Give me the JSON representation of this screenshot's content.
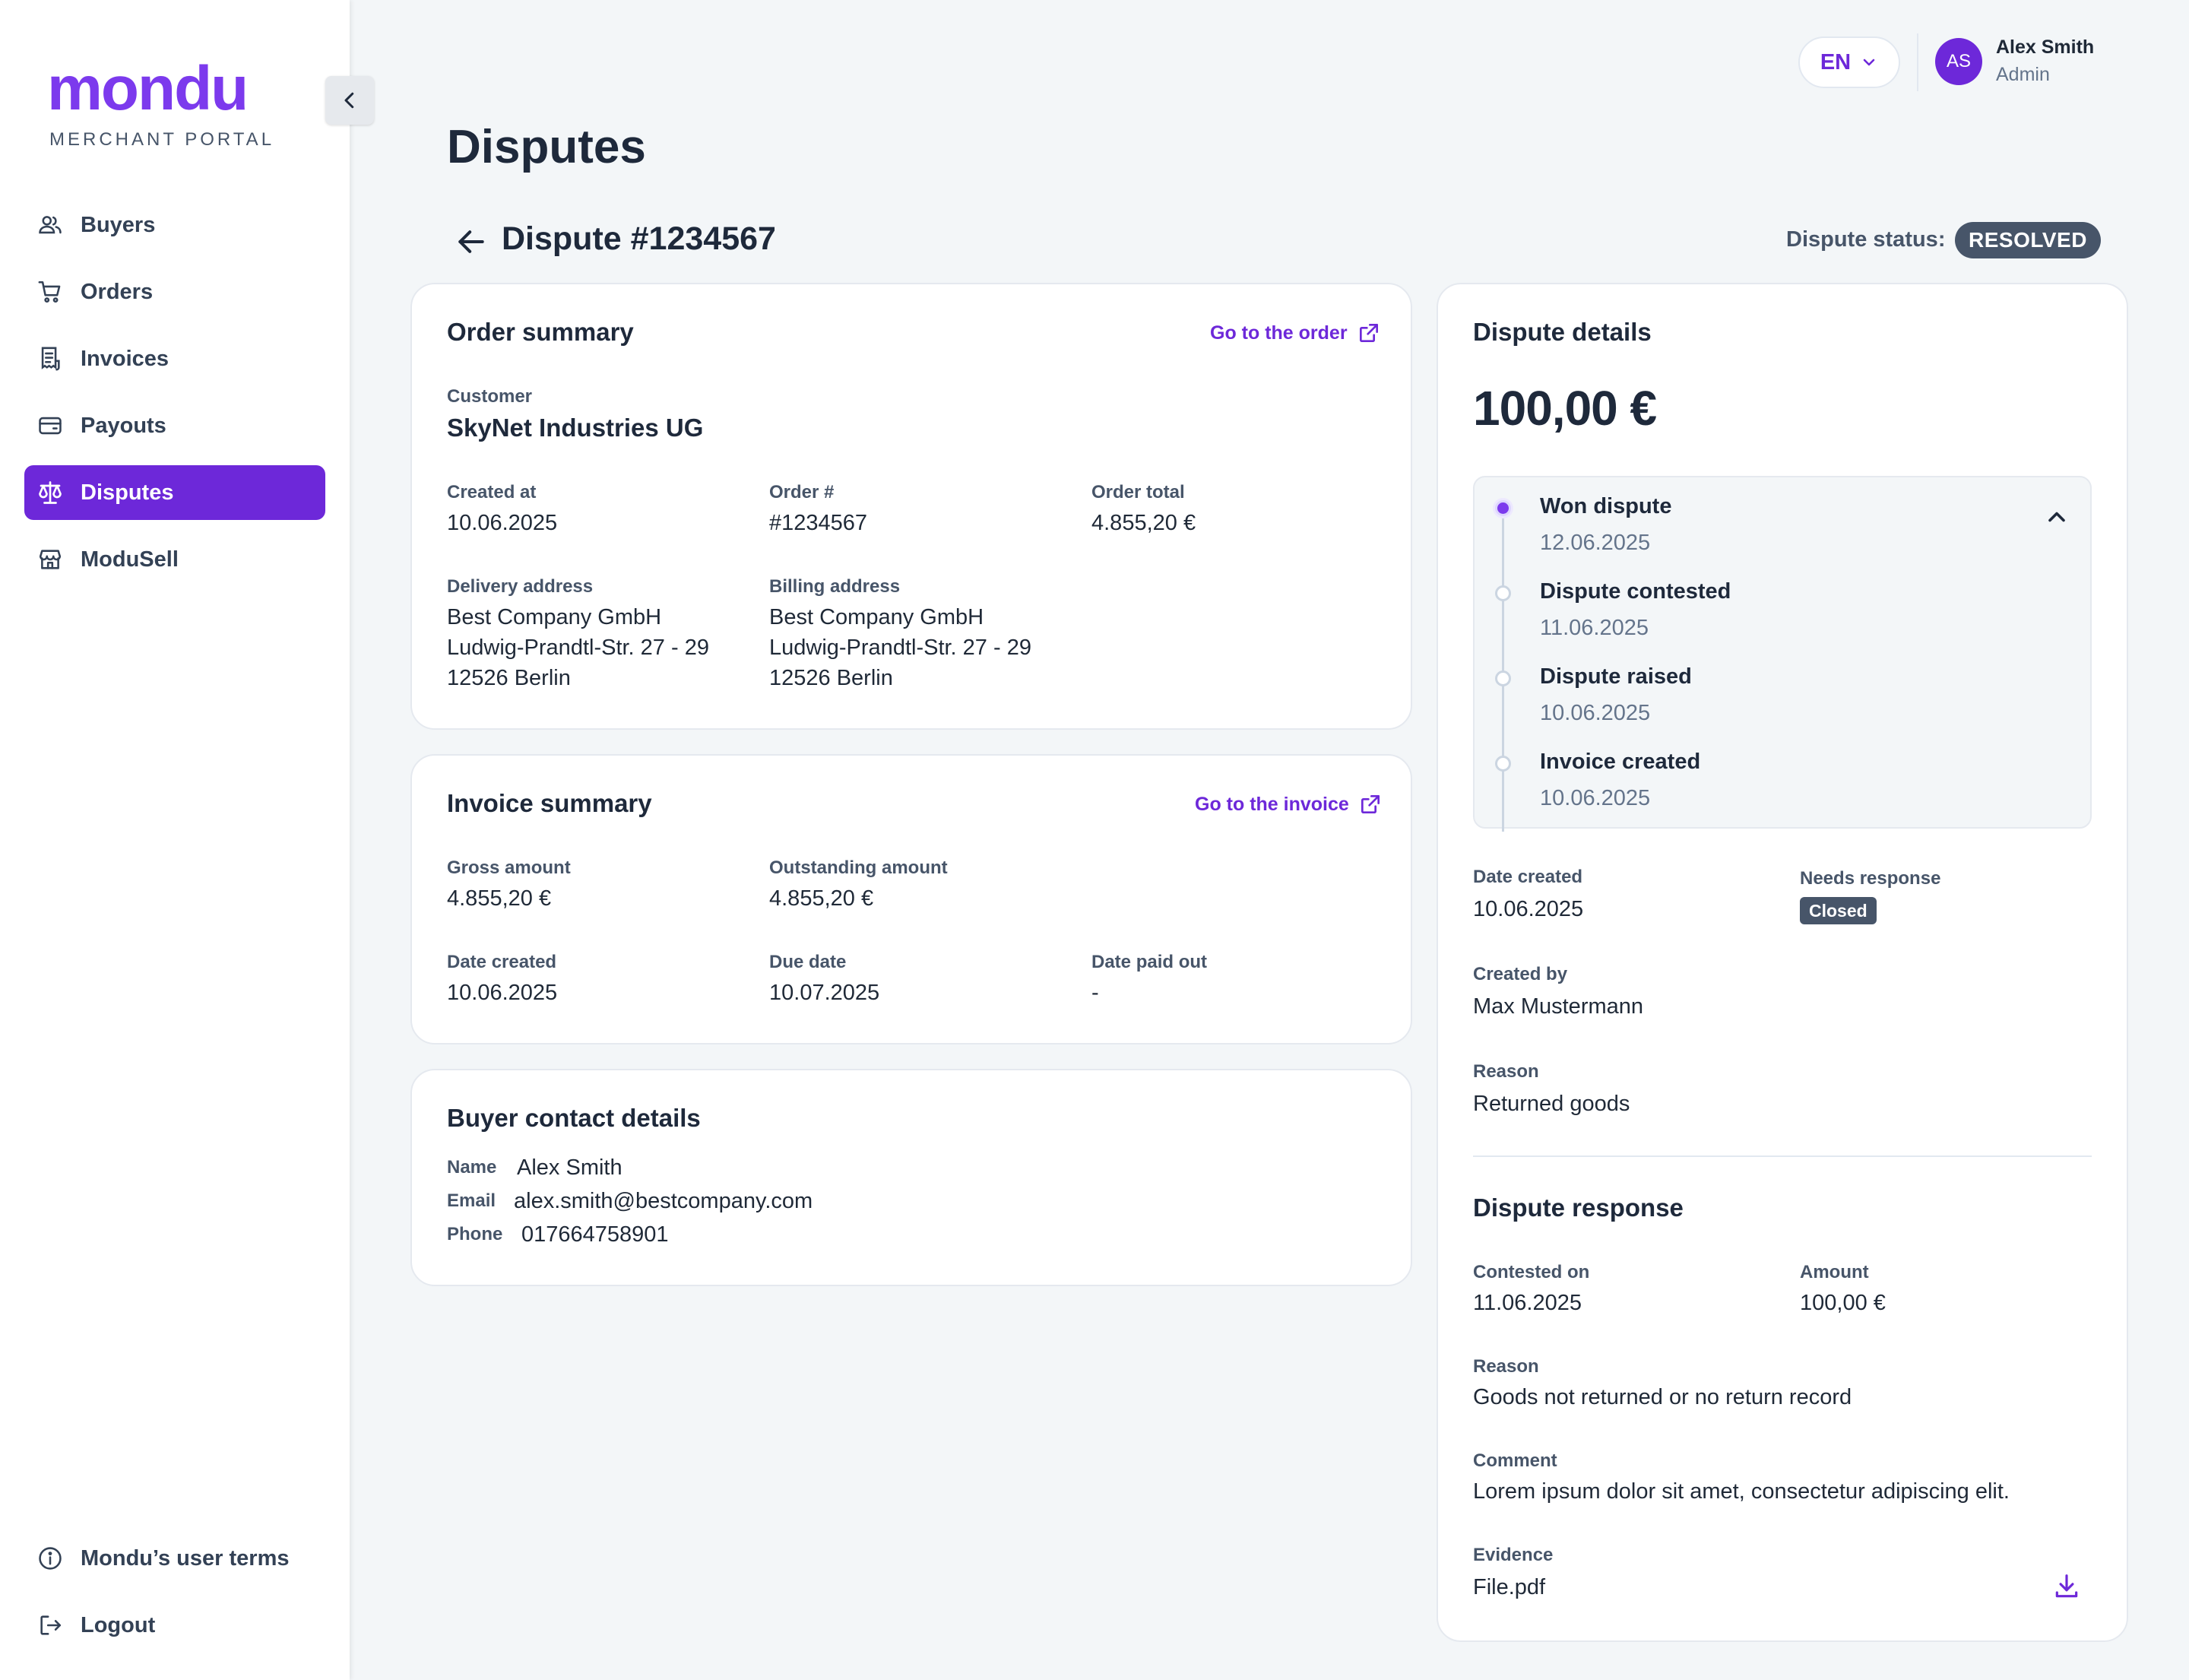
{
  "sidebar": {
    "logo_word": "mondu",
    "logo_sub": "MERCHANT PORTAL",
    "items": [
      {
        "label": "Buyers",
        "icon": "users-icon"
      },
      {
        "label": "Orders",
        "icon": "cart-icon"
      },
      {
        "label": "Invoices",
        "icon": "receipt-icon"
      },
      {
        "label": "Payouts",
        "icon": "wallet-icon"
      },
      {
        "label": "Disputes",
        "icon": "scales-icon",
        "active": true
      },
      {
        "label": "ModuSell",
        "icon": "store-icon"
      }
    ],
    "bottom": [
      {
        "label": "Mondu’s user terms",
        "icon": "info-icon"
      },
      {
        "label": "Logout",
        "icon": "logout-icon"
      }
    ]
  },
  "header": {
    "language": "EN",
    "user_initials": "AS",
    "user_name": "Alex Smith",
    "user_role": "Admin"
  },
  "page": {
    "title": "Disputes",
    "dispute_title": "Dispute #1234567",
    "status_label": "Dispute status:",
    "status_value": "RESOLVED"
  },
  "order_summary": {
    "title": "Order summary",
    "link": "Go to the order",
    "customer_label": "Customer",
    "customer": "SkyNet Industries UG",
    "created_at_label": "Created at",
    "created_at": "10.06.2025",
    "order_no_label": "Order #",
    "order_no": "#1234567",
    "order_total_label": "Order total",
    "order_total": "4.855,20 €",
    "delivery_label": "Delivery address",
    "delivery_lines": [
      "Best Company GmbH",
      "Ludwig-Prandtl-Str. 27 - 29",
      "12526 Berlin"
    ],
    "billing_label": "Billing address",
    "billing_lines": [
      "Best Company GmbH",
      "Ludwig-Prandtl-Str. 27 - 29",
      "12526 Berlin"
    ]
  },
  "invoice_summary": {
    "title": "Invoice summary",
    "link": "Go to the invoice",
    "gross_label": "Gross amount",
    "gross": "4.855,20 €",
    "outstanding_label": "Outstanding amount",
    "outstanding": "4.855,20 €",
    "date_created_label": "Date created",
    "date_created": "10.06.2025",
    "due_label": "Due date",
    "due": "10.07.2025",
    "paid_out_label": "Date paid out",
    "paid_out": "-"
  },
  "buyer_contact": {
    "title": "Buyer contact details",
    "name_label": "Name",
    "name": "Alex Smith",
    "email_label": "Email",
    "email": "alex.smith@bestcompany.com",
    "phone_label": "Phone",
    "phone": "017664758901"
  },
  "dispute_details": {
    "title": "Dispute details",
    "amount": "100,00 €",
    "timeline": [
      {
        "title": "Won dispute",
        "date": "12.06.2025"
      },
      {
        "title": "Dispute contested",
        "date": "11.06.2025"
      },
      {
        "title": "Dispute raised",
        "date": "10.06.2025"
      },
      {
        "title": "Invoice created",
        "date": "10.06.2025"
      }
    ],
    "date_created_label": "Date created",
    "date_created": "10.06.2025",
    "needs_response_label": "Needs response",
    "needs_response": "Closed",
    "created_by_label": "Created by",
    "created_by": "Max Mustermann",
    "reason_label": "Reason",
    "reason": "Returned goods"
  },
  "dispute_response": {
    "title": "Dispute response",
    "contested_label": "Contested on",
    "contested": "11.06.2025",
    "amount_label": "Amount",
    "amount": "100,00 €",
    "reason_label": "Reason",
    "reason": "Goods not returned or no return record",
    "comment_label": "Comment",
    "comment": "Lorem ipsum dolor sit amet, consectetur adipiscing elit.",
    "evidence_label": "Evidence",
    "evidence": "File.pdf"
  },
  "colors": {
    "brand": "#7c3aed",
    "active_nav": "#6d28d9",
    "status_badge": "#475569",
    "background": "#f3f6f8"
  }
}
